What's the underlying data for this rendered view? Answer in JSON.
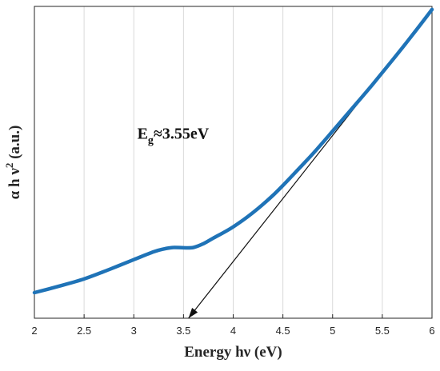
{
  "chart_data": {
    "type": "line",
    "xlabel": "Energy hν (eV)",
    "ylabel": {
      "prefix": "α h ν",
      "superscript": "2",
      "suffix": " (a.u.)"
    },
    "xlim": [
      2,
      6
    ],
    "ylim": [
      0,
      1
    ],
    "xticks": [
      "2",
      "2.5",
      "3",
      "3.5",
      "4",
      "4.5",
      "5",
      "5.5",
      "6"
    ],
    "grid": "vertical",
    "colors": {
      "curve": "#1f73b7",
      "tangent": "#111111",
      "grid": "#d9d9d9",
      "axes": "#262626"
    },
    "series": [
      {
        "x": [
          2.0,
          2.25,
          2.5,
          2.75,
          3.0,
          3.2,
          3.3,
          3.4,
          3.5,
          3.6,
          3.7,
          3.8,
          4.0,
          4.2,
          4.4,
          4.6,
          4.8,
          5.0,
          5.2,
          5.4,
          5.6,
          5.8,
          6.0
        ],
        "y": [
          0.082,
          0.103,
          0.126,
          0.156,
          0.188,
          0.213,
          0.222,
          0.227,
          0.226,
          0.227,
          0.239,
          0.257,
          0.293,
          0.339,
          0.394,
          0.459,
          0.527,
          0.6,
          0.674,
          0.749,
          0.827,
          0.907,
          0.99
        ]
      }
    ],
    "tangent": {
      "x": [
        3.55,
        6.0
      ],
      "y": [
        0.0,
        0.99
      ]
    },
    "annotation": {
      "main": "E",
      "subscript": "g",
      "value": "≈3.55eV",
      "x": 3.55,
      "y": 0.57
    }
  }
}
